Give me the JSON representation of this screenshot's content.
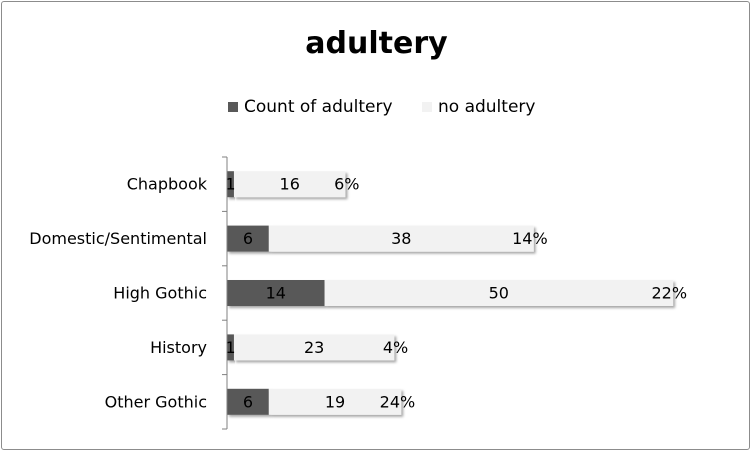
{
  "chart_data": {
    "type": "bar",
    "stacked": true,
    "orientation": "horizontal",
    "title": "adultery",
    "legend_position": "top",
    "grid": false,
    "categories": [
      "Chapbook",
      "Domestic/Sentimental",
      "High Gothic",
      "History",
      "Other Gothic"
    ],
    "series": [
      {
        "name": "Count of adultery",
        "color": "#595959",
        "values": [
          1,
          6,
          14,
          1,
          6
        ]
      },
      {
        "name": "no adultery",
        "color": "#f2f2f2",
        "values": [
          16,
          38,
          50,
          23,
          19
        ]
      }
    ],
    "percent_labels": [
      "6%",
      "14%",
      "22%",
      "4%",
      "24%"
    ],
    "xlim": [
      0,
      66
    ]
  }
}
